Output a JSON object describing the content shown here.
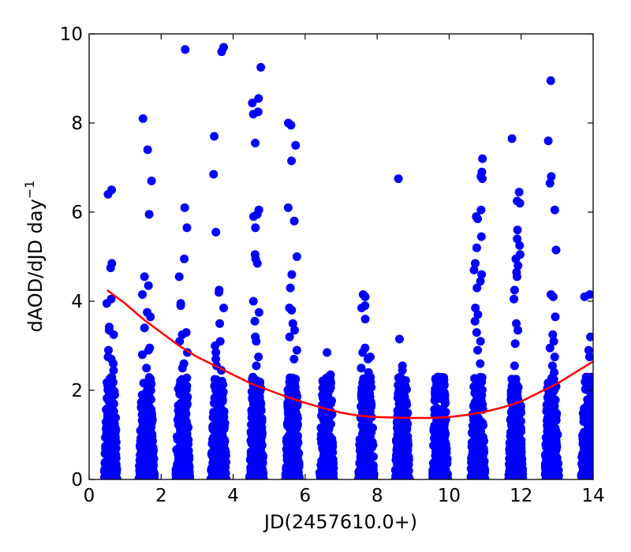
{
  "chart_data": {
    "type": "scatter",
    "title": "",
    "xlabel": "JD(2457610.0+)",
    "ylabel": "dAOD/dJD day",
    "ylabel_superscript": "−1",
    "xlim": [
      0,
      14
    ],
    "ylim": [
      0,
      10
    ],
    "xticks": [
      "0",
      "2",
      "4",
      "6",
      "8",
      "10",
      "12",
      "14"
    ],
    "yticks": [
      "0",
      "2",
      "4",
      "6",
      "8",
      "10"
    ],
    "grid": false,
    "legend": "none",
    "colors": {
      "points": "#0000ff",
      "fit": "#ff0000"
    },
    "clusters": [
      {
        "x_center": 0.6,
        "x_spread": 0.18,
        "outliers": [
          6.5,
          6.4,
          4.85,
          4.75,
          4.05,
          3.95,
          3.42,
          3.35,
          3.25,
          2.9,
          2.75,
          2.7,
          2.6,
          2.45,
          2.3
        ]
      },
      {
        "x_center": 1.6,
        "x_spread": 0.22,
        "outliers": [
          8.1,
          7.4,
          6.7,
          5.95,
          4.55,
          4.35,
          4.15,
          3.75,
          3.65,
          3.4,
          2.95,
          2.9,
          2.8,
          2.5
        ]
      },
      {
        "x_center": 2.6,
        "x_spread": 0.2,
        "outliers": [
          9.65,
          6.1,
          5.65,
          4.95,
          4.55,
          3.95,
          3.9,
          3.3,
          3.25,
          3.1,
          2.85,
          2.6,
          2.5
        ]
      },
      {
        "x_center": 3.6,
        "x_spread": 0.22,
        "outliers": [
          9.7,
          9.6,
          7.7,
          6.85,
          5.55,
          4.25,
          4.2,
          3.85,
          3.5,
          3.1,
          3.0,
          2.85,
          2.7,
          2.55,
          2.45
        ]
      },
      {
        "x_center": 4.65,
        "x_spread": 0.2,
        "outliers": [
          9.25,
          8.55,
          8.45,
          8.25,
          8.2,
          7.55,
          6.05,
          5.95,
          5.9,
          5.65,
          5.05,
          4.95,
          4.85,
          4.0,
          3.75,
          3.55,
          3.2,
          3.1,
          2.75,
          2.55
        ]
      },
      {
        "x_center": 5.65,
        "x_spread": 0.2,
        "outliers": [
          8.0,
          7.95,
          7.5,
          7.15,
          6.1,
          5.8,
          5.0,
          4.6,
          4.3,
          3.85,
          3.8,
          3.5,
          3.35,
          3.2,
          2.9,
          2.7
        ]
      },
      {
        "x_center": 6.6,
        "x_spread": 0.2,
        "outliers": [
          2.85,
          2.35,
          2.0
        ]
      },
      {
        "x_center": 7.7,
        "x_spread": 0.22,
        "outliers": [
          4.15,
          4.1,
          3.9,
          3.85,
          3.6,
          2.95,
          2.85,
          2.75,
          2.7,
          2.5,
          2.4
        ]
      },
      {
        "x_center": 8.7,
        "x_spread": 0.2,
        "outliers": [
          6.75,
          3.15,
          2.55,
          2.45,
          2.3,
          2.0
        ]
      },
      {
        "x_center": 9.75,
        "x_spread": 0.22,
        "outliers": [
          2.3,
          2.2,
          2.0,
          1.7
        ]
      },
      {
        "x_center": 10.8,
        "x_spread": 0.2,
        "outliers": [
          7.2,
          6.9,
          6.8,
          6.75,
          6.05,
          5.9,
          5.85,
          5.45,
          5.2,
          4.85,
          4.7,
          4.6,
          4.45,
          4.3,
          3.85,
          3.7,
          3.55,
          3.3,
          3.1,
          2.9,
          2.6
        ]
      },
      {
        "x_center": 11.85,
        "x_spread": 0.2,
        "outliers": [
          7.65,
          6.45,
          6.25,
          6.2,
          5.6,
          5.4,
          5.25,
          5.05,
          4.95,
          4.8,
          4.65,
          4.55,
          4.25,
          4.05,
          3.5,
          3.35,
          3.05,
          2.55
        ]
      },
      {
        "x_center": 12.85,
        "x_spread": 0.2,
        "outliers": [
          8.95,
          7.6,
          6.8,
          6.65,
          6.05,
          5.15,
          4.15,
          4.1,
          3.65,
          3.25,
          3.1,
          2.95,
          2.75,
          2.55,
          2.4
        ]
      },
      {
        "x_center": 13.85,
        "x_spread": 0.18,
        "outliers": [
          4.15,
          4.1,
          3.2,
          2.9,
          2.75,
          2.3,
          2.1
        ]
      }
    ],
    "fit_line": {
      "x": [
        0.5,
        1.0,
        1.5,
        2.0,
        2.5,
        3.0,
        3.5,
        4.0,
        4.5,
        5.0,
        5.5,
        6.0,
        6.5,
        7.0,
        7.5,
        8.0,
        8.5,
        9.0,
        9.5,
        10.0,
        10.5,
        11.0,
        11.5,
        12.0,
        12.5,
        13.0,
        13.5,
        14.0
      ],
      "y": [
        4.25,
        3.95,
        3.6,
        3.3,
        3.0,
        2.75,
        2.55,
        2.35,
        2.15,
        2.0,
        1.85,
        1.72,
        1.6,
        1.5,
        1.43,
        1.4,
        1.39,
        1.38,
        1.38,
        1.4,
        1.45,
        1.52,
        1.62,
        1.75,
        1.95,
        2.15,
        2.4,
        2.65
      ]
    }
  }
}
